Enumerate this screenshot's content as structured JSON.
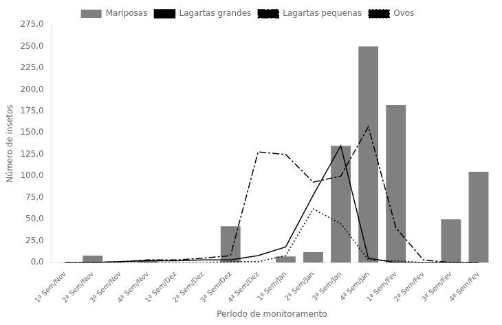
{
  "chart_data": {
    "type": "bar",
    "xlabel": "Período de monitoramento",
    "ylabel": "Número de insetos",
    "categories": [
      "1ª Sem/Nov",
      "2ª Sem/Nov",
      "3ª Sem/Nov",
      "4ª Sem/Nov",
      "1ª Sem/Dez",
      "2ª Sem/Dez",
      "3ª Sem/Dez",
      "4ª Sem/Dez",
      "1ª Sem/Jan",
      "2ª Sem/Jan",
      "3ª Sem/Jan",
      "4ª Sem/Jan",
      "1ª Sem/Fev",
      "2ª Sem/Fev",
      "3ª Sem/Fev",
      "4ª Sem/Fev"
    ],
    "series": [
      {
        "name": "Mariposas",
        "type": "bar",
        "color": "#808080",
        "values": [
          0,
          8,
          0,
          3,
          0,
          0,
          42,
          0,
          7,
          12,
          135,
          250,
          182,
          0,
          50,
          105
        ]
      },
      {
        "name": "Lagartas grandes",
        "type": "line",
        "color": "#000000",
        "line_style": "solid",
        "values": [
          0,
          0,
          1,
          2,
          2,
          3,
          3,
          8,
          18,
          78,
          135,
          5,
          0,
          0,
          0,
          0
        ]
      },
      {
        "name": "Lagartas pequenas",
        "type": "line",
        "color": "#000000",
        "line_style": "dashdot",
        "values": [
          0,
          0,
          1,
          3,
          3,
          5,
          8,
          128,
          125,
          93,
          100,
          157,
          40,
          3,
          0,
          0
        ]
      },
      {
        "name": "Ovos",
        "type": "line",
        "color": "#000000",
        "line_style": "dotted",
        "values": [
          0,
          0,
          0,
          0,
          0,
          0,
          1,
          1,
          8,
          62,
          45,
          3,
          2,
          0,
          0,
          0
        ]
      }
    ],
    "ylim": [
      0,
      275
    ],
    "yticks": [
      {
        "value": 0,
        "label": "0,0"
      },
      {
        "value": 25,
        "label": "25,0"
      },
      {
        "value": 50,
        "label": "50,0"
      },
      {
        "value": 75,
        "label": "75,0"
      },
      {
        "value": 100,
        "label": "100,0"
      },
      {
        "value": 125,
        "label": "125,0"
      },
      {
        "value": 150,
        "label": "150,0"
      },
      {
        "value": 175,
        "label": "175,0"
      },
      {
        "value": 200,
        "label": "200,0"
      },
      {
        "value": 225,
        "label": "225,0"
      },
      {
        "value": 250,
        "label": "250,0"
      },
      {
        "value": 275,
        "label": "275,0"
      }
    ],
    "grid": false,
    "legend": "top"
  }
}
